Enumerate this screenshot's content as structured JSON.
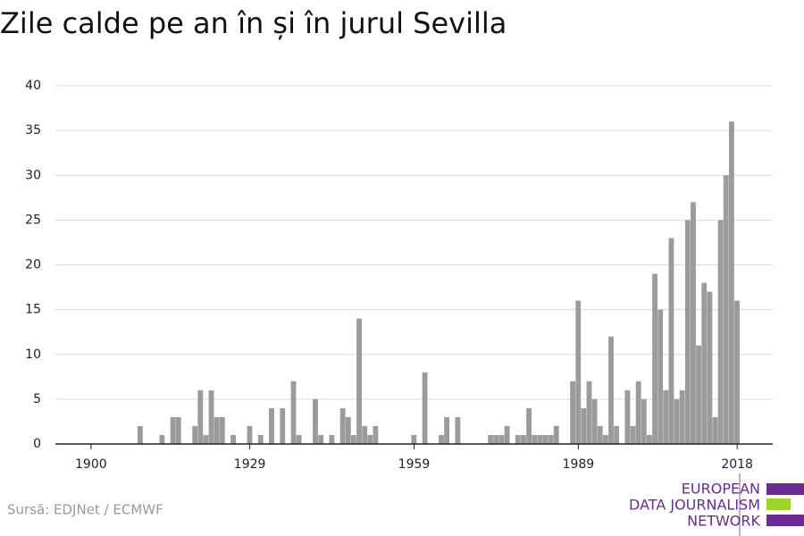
{
  "chart_data": {
    "type": "bar",
    "title": "Zile calde pe an în și în jurul Sevilla",
    "source": "Sursă: EDJNet / ECMWF",
    "x": [
      1909,
      1913,
      1915,
      1916,
      1919,
      1920,
      1921,
      1922,
      1923,
      1924,
      1926,
      1929,
      1931,
      1933,
      1935,
      1937,
      1938,
      1941,
      1942,
      1944,
      1946,
      1947,
      1948,
      1949,
      1950,
      1951,
      1952,
      1959,
      1961,
      1964,
      1965,
      1967,
      1973,
      1974,
      1975,
      1976,
      1978,
      1979,
      1980,
      1981,
      1982,
      1983,
      1984,
      1985,
      1988,
      1989,
      1990,
      1991,
      1992,
      1993,
      1994,
      1995,
      1996,
      1998,
      1999,
      2000,
      2001,
      2002,
      2003,
      2004,
      2005,
      2006,
      2007,
      2008,
      2009,
      2010,
      2011,
      2012,
      2013,
      2014,
      2015,
      2016,
      2017,
      2018
    ],
    "values": [
      2,
      1,
      3,
      3,
      2,
      6,
      1,
      6,
      3,
      3,
      1,
      2,
      1,
      4,
      4,
      7,
      1,
      5,
      1,
      1,
      4,
      3,
      1,
      14,
      2,
      1,
      2,
      1,
      8,
      1,
      3,
      3,
      1,
      1,
      1,
      2,
      1,
      1,
      4,
      1,
      1,
      1,
      1,
      2,
      7,
      16,
      4,
      7,
      5,
      2,
      1,
      12,
      2,
      6,
      2,
      7,
      5,
      1,
      19,
      15,
      6,
      23,
      5,
      6,
      25,
      27,
      11,
      18,
      17,
      3,
      25,
      30,
      36,
      16
    ],
    "color": "#9b9b9b",
    "xlim": [
      1893.5,
      2024.5
    ],
    "xticks": [
      1900,
      1929,
      1959,
      1989,
      2018
    ],
    "ylim": [
      0,
      40
    ],
    "yticks": [
      0,
      5,
      10,
      15,
      20,
      25,
      30,
      35,
      40
    ],
    "grid": true
  },
  "logo": {
    "lines": [
      "EUROPEAN",
      "DATA JOURNALISM",
      "NETWORK"
    ]
  }
}
